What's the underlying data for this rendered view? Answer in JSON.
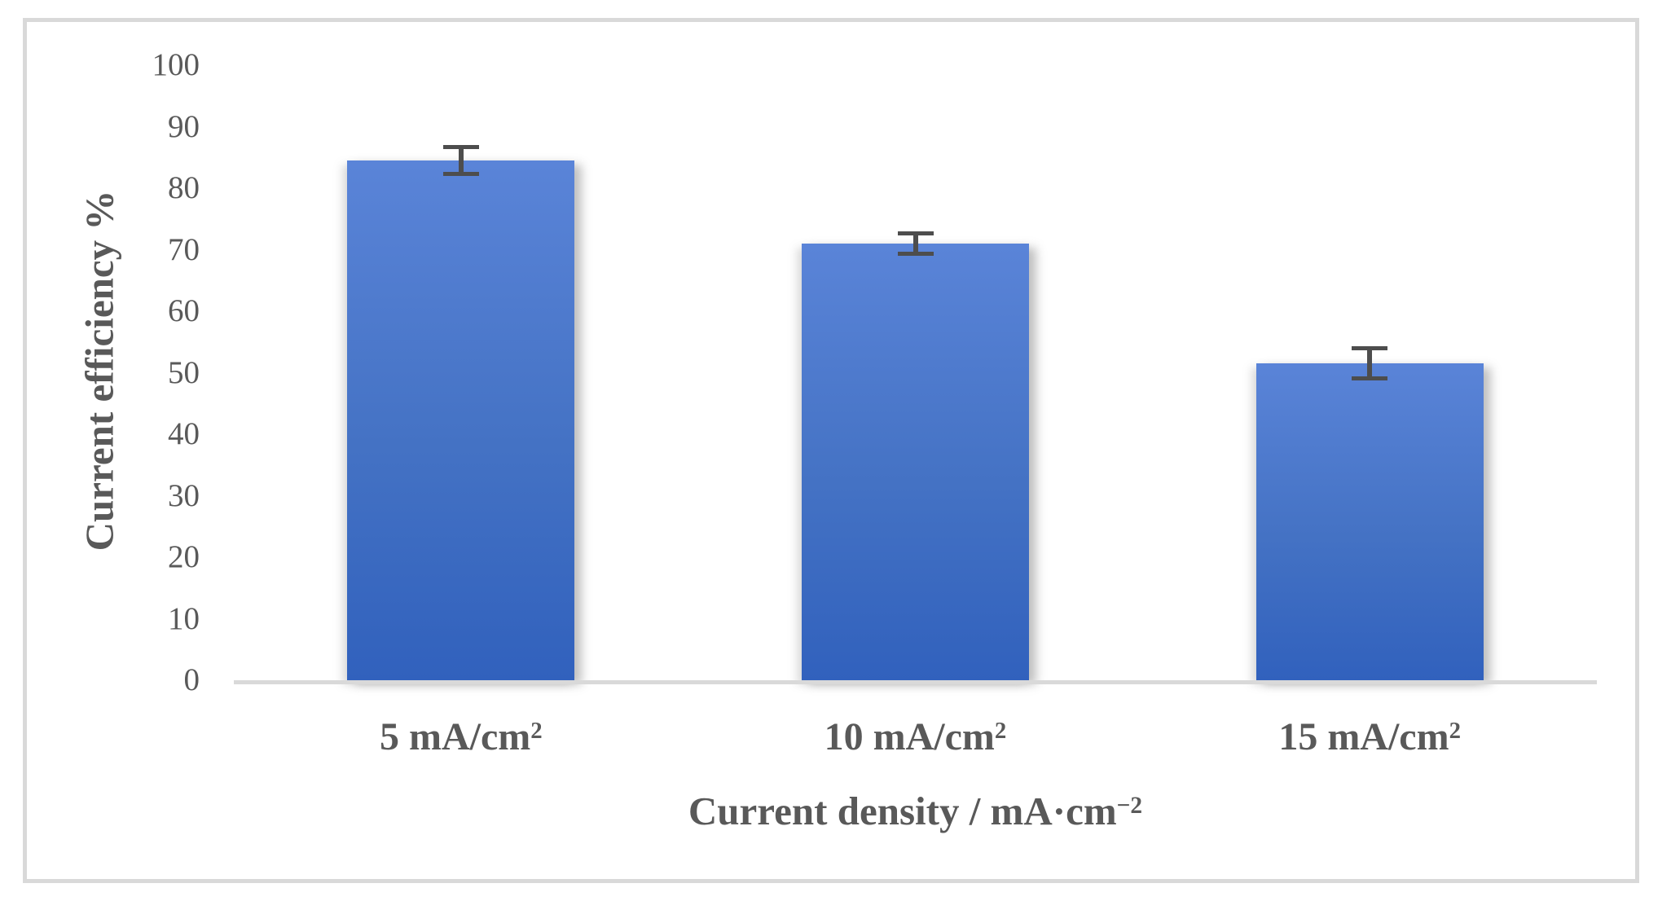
{
  "figure": {
    "background_color": "#ffffff",
    "frame_color": "#d9d9d9",
    "text_color": "#595959"
  },
  "chart_data": {
    "type": "bar",
    "title": "",
    "categories": [
      "5 mA/cm²",
      "10 mA/cm²",
      "15 mA/cm²"
    ],
    "values": [
      84.5,
      71,
      51.5
    ],
    "error_bars": [
      2.5,
      2,
      2.8
    ],
    "xlabel": "Current density / mA·cm⁻²",
    "ylabel": "Current efficiency %",
    "ylim": [
      0,
      100
    ],
    "y_ticks": [
      0,
      10,
      20,
      30,
      40,
      50,
      60,
      70,
      80,
      90,
      100
    ],
    "grid": false,
    "legend": false,
    "bar_color": "#4472c4",
    "bar_gradient_top": "#5a84d8",
    "bar_gradient_bottom": "#3161bd",
    "error_bar_color": "#4d4d4d",
    "axis_line_color": "#d9d9d9",
    "tick_text_color": "#595959"
  }
}
